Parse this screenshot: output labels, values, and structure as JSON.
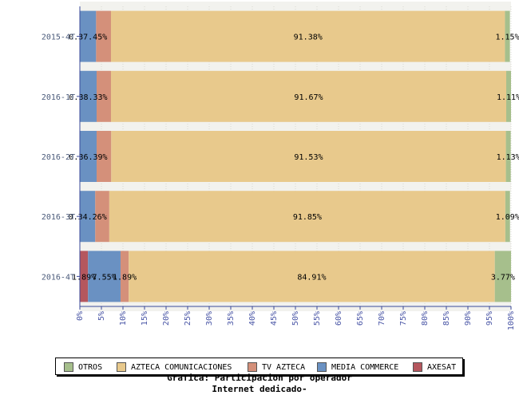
{
  "chart_data": {
    "type": "bar",
    "orientation": "horizontal",
    "stacked": true,
    "categories": [
      "2015-4T",
      "2016-1T",
      "2016-2T",
      "2016-3T",
      "2016-4T"
    ],
    "series": [
      {
        "name": "AXESAT",
        "color": "#b5575e",
        "values": [
          0,
          0,
          0,
          0,
          1.89
        ]
      },
      {
        "name": "MEDIA COMMERCE",
        "color": "#6a91c2",
        "values": [
          3.77,
          3.89,
          3.89,
          3.57,
          7.55
        ]
      },
      {
        "name": "TV AZTECA",
        "color": "#d4907a",
        "values": [
          3.45,
          3.33,
          3.39,
          3.26,
          1.89
        ]
      },
      {
        "name": "AZTECA COMUNICACIONES",
        "color": "#e8c98c",
        "values": [
          91.38,
          91.67,
          91.53,
          91.85,
          84.91
        ]
      },
      {
        "name": "OTROS",
        "color": "#a6bf8c",
        "values": [
          1.15,
          1.11,
          1.13,
          1.09,
          3.77
        ]
      }
    ],
    "data_labels": [
      [
        "0.37.45%",
        "",
        "91.38%",
        "1.15%"
      ],
      [
        "0.38.33%",
        "",
        "91.67%",
        "1.11%"
      ],
      [
        "0.36.39%",
        "",
        "91.53%",
        "1.13%"
      ],
      [
        "0.34.26%",
        "",
        "91.85%",
        "1.09%"
      ],
      [
        "1.89%",
        "7.55%",
        "1.89%",
        "84.91%",
        "3.77%"
      ]
    ],
    "xlim": [
      0,
      100
    ],
    "xticks": [
      "0%",
      "5%",
      "10%",
      "15%",
      "20%",
      "25%",
      "30%",
      "35%",
      "40%",
      "45%",
      "50%",
      "55%",
      "60%",
      "65%",
      "70%",
      "75%",
      "80%",
      "85%",
      "90%",
      "95%",
      "100%"
    ],
    "legend_order": [
      "OTROS",
      "AZTECA COMUNICACIONES",
      "TV AZTECA",
      "MEDIA COMMERCE",
      "AXESAT"
    ],
    "legend_position": "bottom",
    "grid": true,
    "title_line1": "Grafica: Participacion por operador",
    "title_line2": "Internet dedicado-"
  },
  "colors": {
    "category_label": "#4a5a7a",
    "axis": "#3b4a9a",
    "tick_label": "#4a56a6",
    "band": "#f2f2ee"
  }
}
